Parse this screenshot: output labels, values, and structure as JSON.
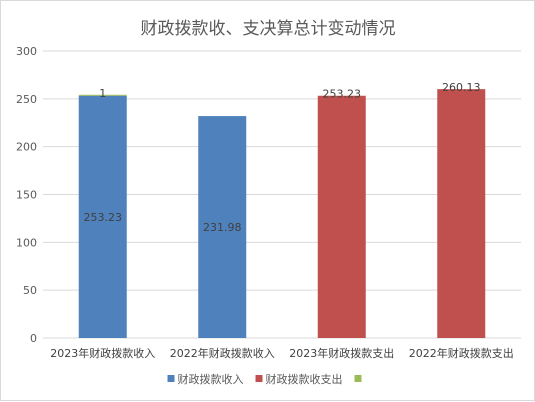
{
  "chart_data": {
    "type": "bar",
    "title": "财政拨款收、支决算总计变动情况",
    "categories": [
      "2023年财政拨款收入",
      "2022年财政拨款收入",
      "2023年财政拨款支出",
      "2022年财政拨款支出"
    ],
    "series": [
      {
        "name": "财政拨款收入",
        "color": "#4f81bd",
        "values": [
          253.23,
          231.98,
          null,
          null
        ],
        "labels": [
          "253.23",
          "231.98",
          null,
          null
        ]
      },
      {
        "name": "财政拨款收支出",
        "color": "#c0504d",
        "values": [
          null,
          null,
          253.23,
          260.13
        ],
        "labels": [
          null,
          null,
          "253.23",
          "260.13"
        ]
      },
      {
        "name": "",
        "color": "#9bbb59",
        "values": [
          1,
          null,
          null,
          null
        ],
        "labels": [
          "1",
          null,
          null,
          null
        ]
      }
    ],
    "stacked": true,
    "ylim": [
      0,
      300
    ],
    "yticks": [
      0,
      50,
      100,
      150,
      200,
      250,
      300
    ],
    "grid": true,
    "legend_position": "bottom"
  }
}
